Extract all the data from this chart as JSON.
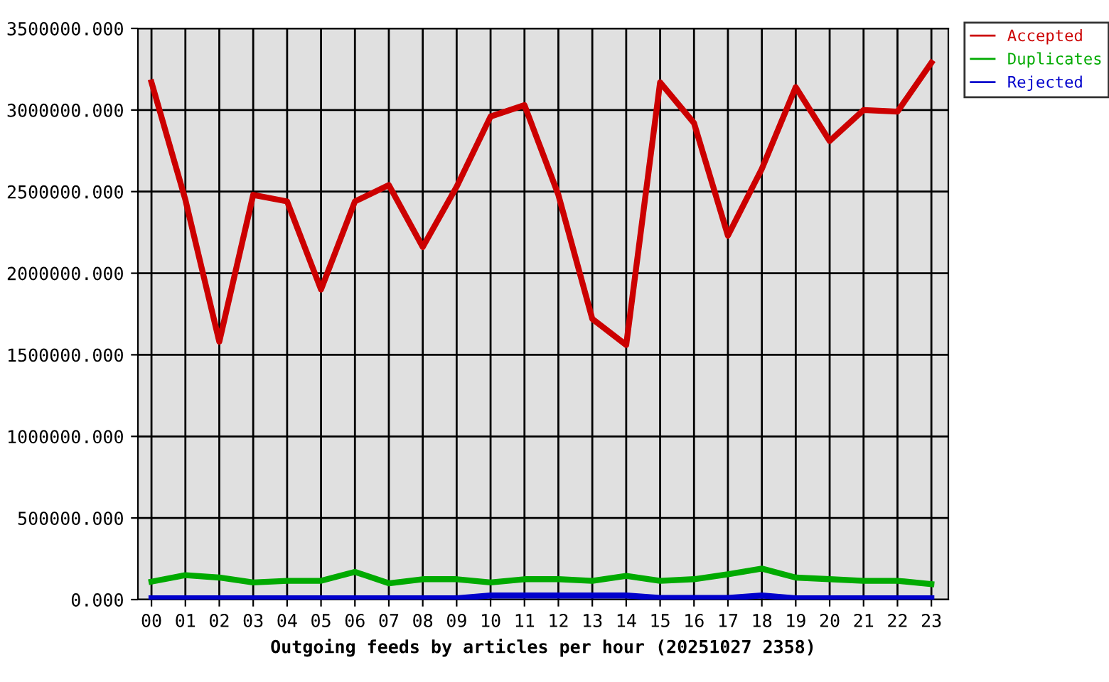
{
  "chart_data": {
    "type": "line",
    "xlabel": "Outgoing feeds by articles per hour (20251027 2358)",
    "categories": [
      "00",
      "01",
      "02",
      "03",
      "04",
      "05",
      "06",
      "07",
      "08",
      "09",
      "10",
      "11",
      "12",
      "13",
      "14",
      "15",
      "16",
      "17",
      "18",
      "19",
      "20",
      "21",
      "22",
      "23"
    ],
    "series": [
      {
        "name": "Accepted",
        "color": "#cc0000",
        "values": [
          3170000,
          2450000,
          1580000,
          2480000,
          2440000,
          1900000,
          2440000,
          2540000,
          2160000,
          2530000,
          2960000,
          3030000,
          2480000,
          1720000,
          1560000,
          3170000,
          2920000,
          2230000,
          2640000,
          3140000,
          2810000,
          3000000,
          2990000,
          3290000
        ]
      },
      {
        "name": "Duplicates",
        "color": "#00aa00",
        "values": [
          110000,
          150000,
          135000,
          105000,
          115000,
          115000,
          170000,
          100000,
          125000,
          125000,
          105000,
          125000,
          125000,
          115000,
          145000,
          115000,
          125000,
          155000,
          190000,
          135000,
          125000,
          115000,
          115000,
          95000
        ]
      },
      {
        "name": "Rejected",
        "color": "#0000cc",
        "values": [
          8000,
          8000,
          8000,
          8000,
          8000,
          8000,
          8000,
          8000,
          8000,
          8000,
          25000,
          25000,
          25000,
          25000,
          25000,
          10000,
          10000,
          10000,
          25000,
          8000,
          8000,
          8000,
          8000,
          8000
        ]
      }
    ],
    "ylim": [
      0,
      3500000
    ],
    "yticks": [
      {
        "value": 0,
        "label": "0.000"
      },
      {
        "value": 500000,
        "label": "500000.000"
      },
      {
        "value": 1000000,
        "label": "1000000.000"
      },
      {
        "value": 1500000,
        "label": "1500000.000"
      },
      {
        "value": 2000000,
        "label": "2000000.000"
      },
      {
        "value": 2500000,
        "label": "2500000.000"
      },
      {
        "value": 3000000,
        "label": "3000000.000"
      },
      {
        "value": 3500000,
        "label": "3500000.000"
      }
    ],
    "grid": true,
    "legend": "top right",
    "line_style": "solid"
  }
}
